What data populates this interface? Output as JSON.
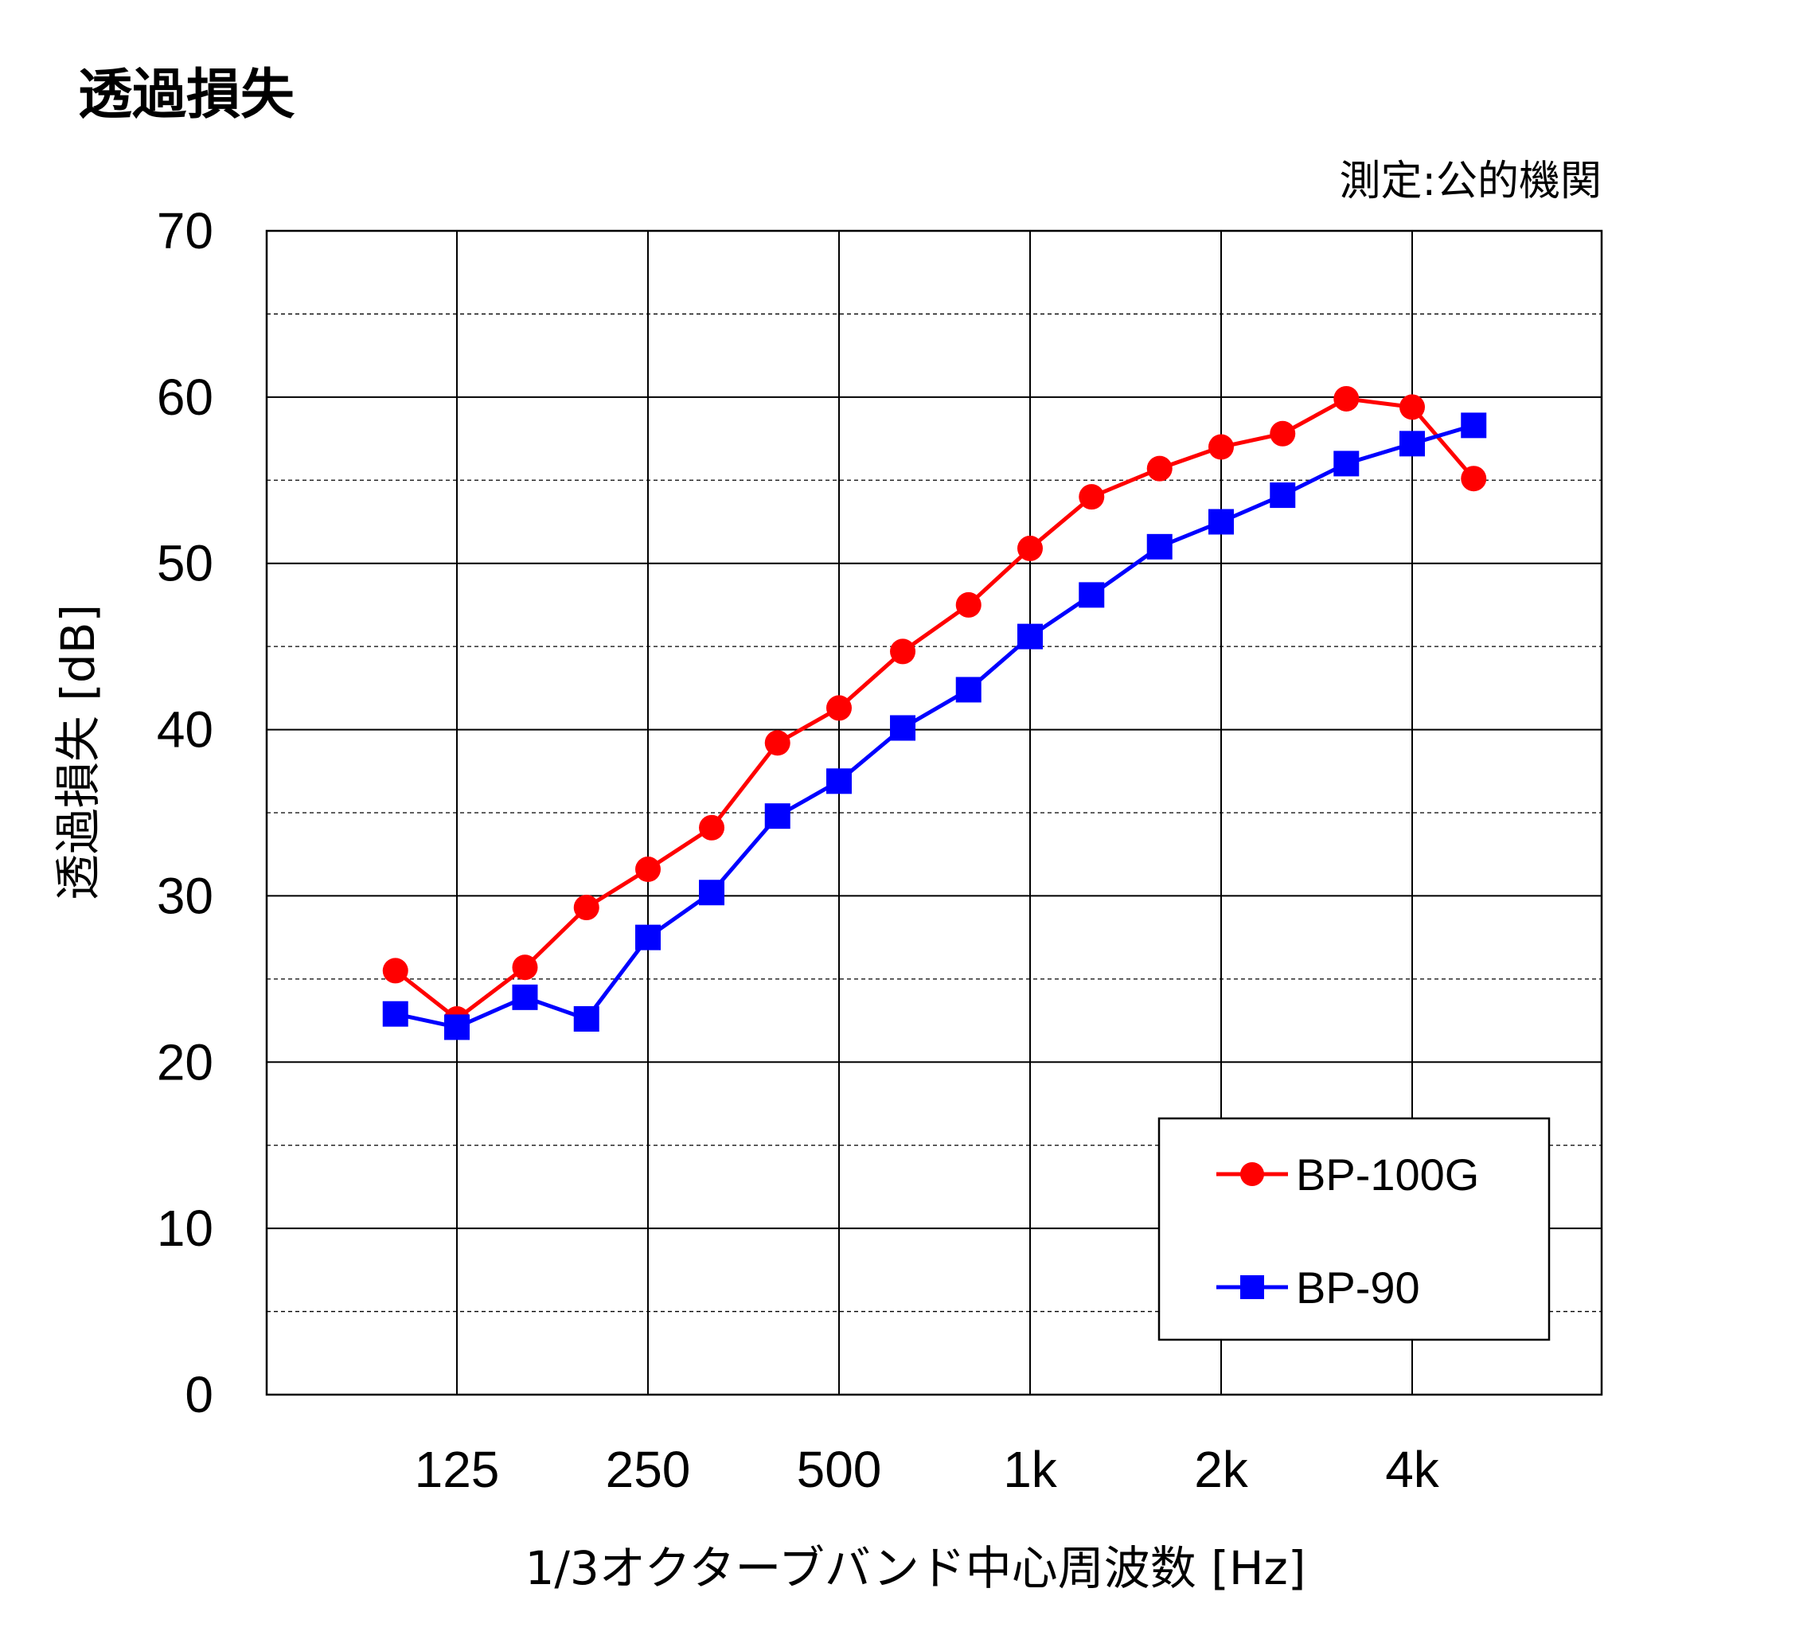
{
  "header": {
    "title": "透過損失",
    "measurement_note": "測定:公的機関"
  },
  "colors": {
    "BP-100G": "#ff0000",
    "BP-90": "#0000ff",
    "grid": "#000000"
  },
  "chart_data": {
    "type": "line",
    "title": "透過損失",
    "xlabel": "1/3オクターブバンド中心周波数 [Hz]",
    "ylabel": "透過損失 [dB]",
    "ylim": [
      0,
      70
    ],
    "y_ticks": [
      0,
      10,
      20,
      30,
      40,
      50,
      60,
      70
    ],
    "y_minor_step": 5,
    "x_scale": "log (1/3 octave bands)",
    "x": [
      100,
      125,
      160,
      200,
      250,
      315,
      400,
      500,
      630,
      800,
      1000,
      1250,
      1600,
      2000,
      2500,
      3150,
      4000,
      5000
    ],
    "x_tick_labels": [
      "125",
      "250",
      "500",
      "1k",
      "2k",
      "4k"
    ],
    "x_tick_values": [
      125,
      250,
      500,
      1000,
      2000,
      4000
    ],
    "grid": true,
    "legend_position": "bottom-right",
    "series": [
      {
        "name": "BP-100G",
        "marker": "circle",
        "color": "#ff0000",
        "values": [
          25.5,
          22.6,
          25.7,
          29.3,
          31.6,
          34.1,
          39.2,
          41.3,
          44.7,
          47.5,
          50.9,
          54.0,
          55.7,
          57.0,
          57.8,
          59.9,
          59.4,
          55.1
        ]
      },
      {
        "name": "BP-90",
        "marker": "square",
        "color": "#0000ff",
        "values": [
          22.9,
          22.1,
          23.9,
          22.6,
          27.5,
          30.2,
          34.8,
          36.9,
          40.1,
          42.4,
          45.6,
          48.1,
          51.0,
          52.5,
          54.1,
          56.0,
          57.2,
          58.3
        ]
      }
    ]
  }
}
